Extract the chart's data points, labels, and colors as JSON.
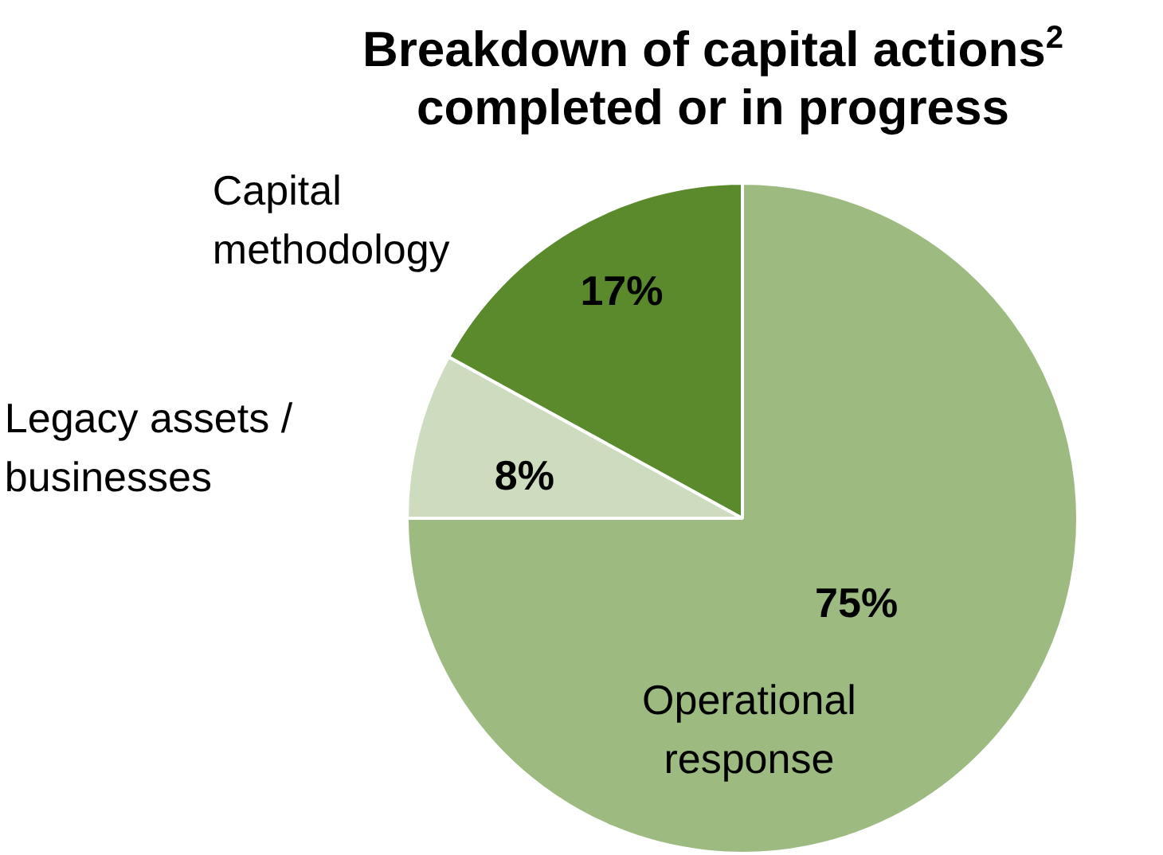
{
  "chart_data": {
    "type": "pie",
    "title": "Breakdown of capital actions$^{2}$ completed or in progress",
    "categories": [
      "Operational response",
      "Legacy assets / businesses",
      "Capital methodology"
    ],
    "values": [
      75,
      8,
      17
    ],
    "colors": [
      "#9dba80",
      "#cddbbf",
      "#5a8a2c"
    ],
    "value_labels": [
      "75%",
      "8%",
      "17%"
    ],
    "legend": false
  }
}
